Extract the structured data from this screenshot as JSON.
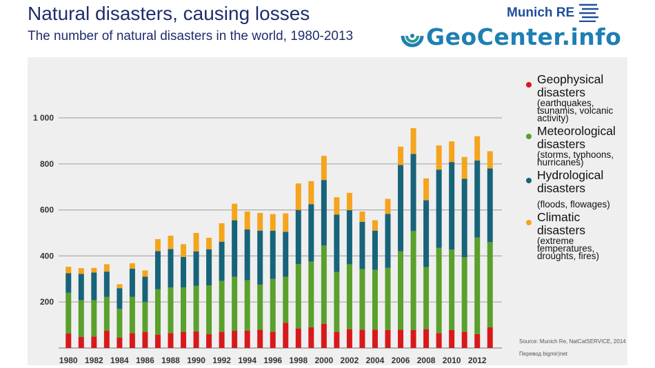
{
  "header": {
    "title": "Natural disasters, causing losses",
    "subtitle": "The number of natural disasters in the world, 1980-2013"
  },
  "logos": {
    "munich_re": "Munich RE",
    "geocenter": "GeoCenter.info"
  },
  "colors": {
    "geophysical": "#d7191c",
    "meteorological": "#5aa02c",
    "hydrological": "#17637a",
    "climatic": "#f5a41d",
    "title": "#1f2d6b",
    "panel": "#efefef"
  },
  "legend": [
    {
      "label": "Geophysical disasters",
      "desc": "(earthquakes, tsunamis, volcanic activity)"
    },
    {
      "label": "Meteorological disasters",
      "desc": "(storms, typhoons, hurricanes)"
    },
    {
      "label": "Hydrological disasters",
      "desc": "(floods, flowages)"
    },
    {
      "label": "Climatic disasters",
      "desc": "(extreme temperatures, droughts, fires)"
    }
  ],
  "source": "Source: Munich Re, NatCatSERVICE, 2014",
  "credit": "Перевод bigmir)net",
  "chart_data": {
    "type": "bar",
    "stacked": true,
    "title": "The number of natural disasters in the world, 1980-2013",
    "categories": [
      "1980",
      "1981",
      "1982",
      "1983",
      "1984",
      "1985",
      "1986",
      "1987",
      "1988",
      "1989",
      "1990",
      "1991",
      "1992",
      "1993",
      "1994",
      "1995",
      "1996",
      "1997",
      "1998",
      "1999",
      "2000",
      "2001",
      "2002",
      "2003",
      "2004",
      "2005",
      "2006",
      "2007",
      "2008",
      "2009",
      "2010",
      "2011",
      "2012",
      "2013"
    ],
    "x_tick_labels": [
      "1980",
      "1982",
      "1984",
      "1986",
      "1988",
      "1990",
      "1992",
      "1994",
      "1996",
      "1998",
      "2000",
      "2002",
      "2004",
      "2006",
      "2008",
      "2010",
      "2012"
    ],
    "y_ticks": [
      200,
      400,
      600,
      800,
      1000
    ],
    "y_tick_labels": [
      "200",
      "400",
      "600",
      "800",
      "1 000"
    ],
    "ylim": [
      0,
      1000
    ],
    "grid": true,
    "legend_position": "right",
    "series": [
      {
        "name": "Geophysical disasters",
        "values": [
          63,
          48,
          50,
          75,
          45,
          65,
          70,
          58,
          65,
          70,
          72,
          60,
          70,
          75,
          75,
          80,
          70,
          110,
          85,
          90,
          105,
          70,
          82,
          80,
          80,
          78,
          80,
          78,
          82,
          65,
          78,
          70,
          60,
          90
        ]
      },
      {
        "name": "Meteorological disasters",
        "values": [
          177,
          160,
          158,
          147,
          125,
          157,
          130,
          197,
          198,
          193,
          198,
          212,
          222,
          235,
          220,
          195,
          230,
          200,
          280,
          285,
          340,
          260,
          282,
          263,
          260,
          270,
          340,
          430,
          270,
          370,
          350,
          325,
          420,
          370
        ]
      },
      {
        "name": "Hydrological disasters",
        "values": [
          85,
          114,
          120,
          110,
          90,
          123,
          110,
          166,
          167,
          133,
          150,
          157,
          170,
          245,
          220,
          235,
          210,
          195,
          235,
          250,
          285,
          250,
          235,
          205,
          170,
          235,
          375,
          335,
          290,
          340,
          380,
          340,
          335,
          320
        ]
      },
      {
        "name": "Climatic disasters",
        "values": [
          28,
          25,
          20,
          32,
          17,
          23,
          27,
          52,
          58,
          55,
          80,
          50,
          80,
          72,
          78,
          77,
          72,
          80,
          115,
          100,
          105,
          75,
          75,
          45,
          45,
          65,
          80,
          112,
          95,
          105,
          90,
          95,
          105,
          75
        ]
      }
    ]
  }
}
